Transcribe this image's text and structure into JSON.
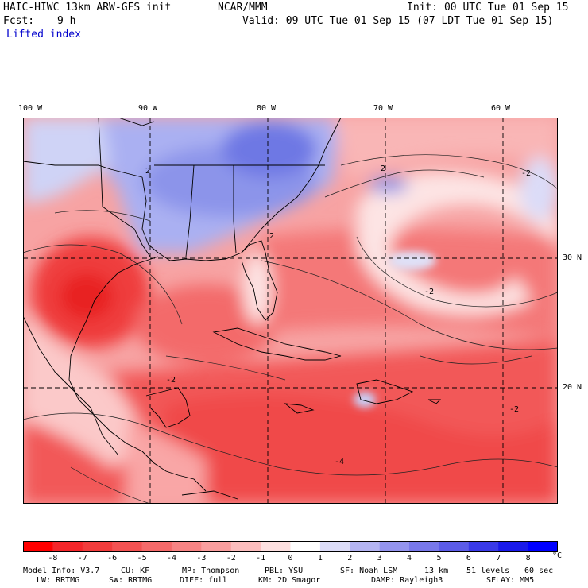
{
  "header": {
    "model_title": "HAIC-HIWC 13km ARW-GFS init",
    "org": "NCAR/MMM",
    "init_label": "Init: 00 UTC Tue 01 Sep 15",
    "fcst_label": "Fcst:",
    "fcst_hours": "9 h",
    "valid_label": "Valid: 09 UTC Tue 01 Sep 15 (07 LDT Tue 01 Sep 15)",
    "variable": "Lifted index"
  },
  "map": {
    "longitude_labels": [
      "100 W",
      "90 W",
      "80 W",
      "70 W",
      "60 W"
    ],
    "latitude_labels": [
      "30 N",
      "20 N"
    ],
    "contour_labels": [
      "2",
      "2",
      "2",
      "-2",
      "-2",
      "-2",
      "-4",
      "-2"
    ]
  },
  "colorbar": {
    "tick_labels": [
      "-8",
      "-7",
      "-6",
      "-5",
      "-4",
      "-3",
      "-2",
      "-1",
      "0",
      "1",
      "2",
      "3",
      "4",
      "5",
      "6",
      "7",
      "8"
    ],
    "unit": "°C",
    "colors": [
      "#ff0000",
      "#f4262a",
      "#f23c3c",
      "#f35252",
      "#f56a6a",
      "#f78484",
      "#f99e9e",
      "#fcbebe",
      "#fde0e0",
      "#ffffff",
      "#dcdcf8",
      "#b4b4f2",
      "#9494ee",
      "#7878ea",
      "#5c5ce8",
      "#3a3ae8",
      "#1a1aea",
      "#0000ff"
    ]
  },
  "model_info": {
    "line1": [
      "Model Info: V3.7",
      "CU: KF",
      "MP: Thompson",
      "PBL: YSU",
      "SF: Noah LSM",
      "13 km",
      "51 levels",
      "60 sec"
    ],
    "line2": [
      "LW: RRTMG",
      "SW: RRTMG",
      "DIFF: full",
      "KM: 2D Smagor",
      "DAMP: Rayleigh3",
      "SFLAY: MM5"
    ]
  }
}
